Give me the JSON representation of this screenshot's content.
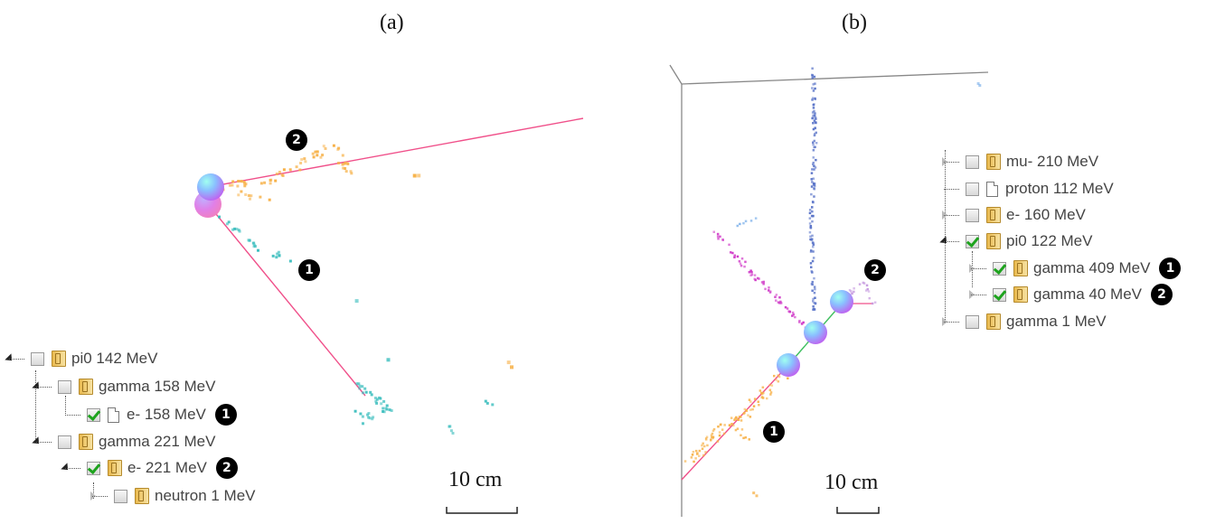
{
  "panels": [
    {
      "label": "(a)",
      "scale_label": "10 cm"
    },
    {
      "label": "(b)",
      "scale_label": "10 cm"
    }
  ],
  "badges": {
    "one": "1",
    "two": "2"
  },
  "tree_a": [
    {
      "label": "pi0 142 MeV",
      "checked": false,
      "icon": "folder-icon"
    },
    {
      "label": "gamma 158 MeV",
      "checked": false,
      "icon": "folder-icon"
    },
    {
      "label": "e- 158 MeV",
      "checked": true,
      "icon": "file-icon"
    },
    {
      "label": "gamma 221 MeV",
      "checked": false,
      "icon": "folder-icon"
    },
    {
      "label": "e- 221 MeV",
      "checked": true,
      "icon": "folder-icon"
    },
    {
      "label": "neutron 1 MeV",
      "checked": false,
      "icon": "folder-icon"
    }
  ],
  "tree_b": [
    {
      "label": "mu- 210 MeV",
      "checked": false,
      "icon": "folder-icon"
    },
    {
      "label": "proton 112 MeV",
      "checked": false,
      "icon": "file-icon"
    },
    {
      "label": "e- 160 MeV",
      "checked": false,
      "icon": "folder-icon"
    },
    {
      "label": "pi0 122 MeV",
      "checked": true,
      "icon": "folder-icon"
    },
    {
      "label": "gamma 409 MeV",
      "checked": true,
      "icon": "folder-icon"
    },
    {
      "label": "gamma 40 MeV",
      "checked": true,
      "icon": "folder-icon"
    },
    {
      "label": "gamma 1 MeV",
      "checked": false,
      "icon": "folder-icon"
    }
  ],
  "colors": {
    "track_pink": "#f0508a",
    "hits_orange": "#f7b24a",
    "hits_cyan": "#3fbfbf",
    "hits_blue": "#5a74c8",
    "hits_magenta": "#d03cc8",
    "hits_violet": "#c79be0",
    "hits_lightblue": "#6ea8e8",
    "track_green": "#3fbf5f"
  }
}
